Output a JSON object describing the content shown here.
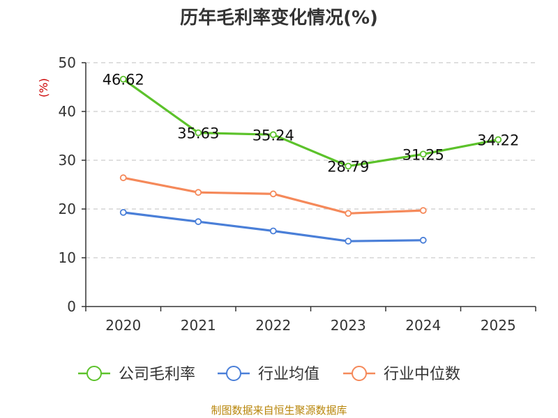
{
  "chart_data": {
    "type": "line",
    "title": "历年毛利率变化情况(%)",
    "ylabel": "(%)",
    "xlabel": "",
    "categories": [
      "2020",
      "2021",
      "2022",
      "2023",
      "2024",
      "2025"
    ],
    "ylim": [
      0,
      50
    ],
    "yticks": [
      "0",
      "10",
      "20",
      "30",
      "40",
      "50"
    ],
    "grid": true,
    "legend_position": "bottom",
    "series": [
      {
        "name": "公司毛利率",
        "color": "#5cc22b",
        "values": [
          46.62,
          35.63,
          35.24,
          28.79,
          31.25,
          34.22
        ],
        "labels": [
          "46.62",
          "35.63",
          "35.24",
          "28.79",
          "31.25",
          "34.22"
        ],
        "show_labels": true
      },
      {
        "name": "行业均值",
        "color": "#4a7fd8",
        "values": [
          19.3,
          17.4,
          15.5,
          13.4,
          13.6,
          null
        ],
        "show_labels": false
      },
      {
        "name": "行业中位数",
        "color": "#f5895a",
        "values": [
          26.4,
          23.4,
          23.1,
          19.1,
          19.7,
          null
        ],
        "show_labels": false
      }
    ]
  },
  "source": "制图数据来自恒生聚源数据库"
}
